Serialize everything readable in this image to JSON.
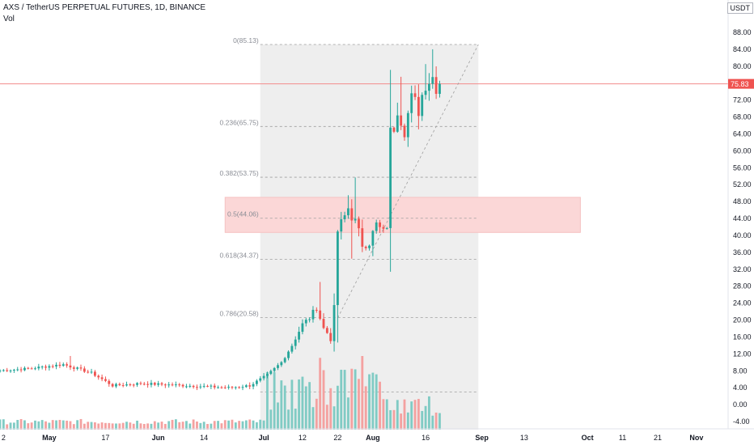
{
  "header": {
    "symbol_line": "AXS / TetherUS PERPETUAL FUTURES, 1D, BINANCE",
    "volume_label": "Vol",
    "currency": "USDT"
  },
  "price_tag": "75.83",
  "colors": {
    "up": "#26a69a",
    "down": "#ef5350",
    "vol_up": "#80cbc4",
    "vol_down": "#f4a1a0",
    "fib_bg": "#eeeeee",
    "zone": "#fbd7d7",
    "price_line": "#f28b8b"
  },
  "chart_data": {
    "type": "candlestick",
    "title": "AXS / TetherUS PERPETUAL FUTURES, 1D, BINANCE",
    "y_axis": {
      "min": -4,
      "max": 88,
      "ticks": [
        "88.00",
        "84.00",
        "80.00",
        "76.00",
        "72.00",
        "68.00",
        "64.00",
        "60.00",
        "56.00",
        "52.00",
        "48.00",
        "44.00",
        "40.00",
        "36.00",
        "32.00",
        "28.00",
        "24.00",
        "20.00",
        "16.00",
        "12.00",
        "8.00",
        "4.00",
        "0.00",
        "-4.00"
      ]
    },
    "x_axis": {
      "start": "2021-04-17",
      "end": "2021-11-10",
      "ticks": [
        {
          "label": "2",
          "date": "2021-04-18"
        },
        {
          "label": "May",
          "date": "2021-05-01"
        },
        {
          "label": "17",
          "date": "2021-05-17"
        },
        {
          "label": "Jun",
          "date": "2021-06-01"
        },
        {
          "label": "14",
          "date": "2021-06-14"
        },
        {
          "label": "Jul",
          "date": "2021-07-01"
        },
        {
          "label": "12",
          "date": "2021-07-12"
        },
        {
          "label": "22",
          "date": "2021-07-22"
        },
        {
          "label": "Aug",
          "date": "2021-08-01"
        },
        {
          "label": "16",
          "date": "2021-08-16"
        },
        {
          "label": "Sep",
          "date": "2021-09-01"
        },
        {
          "label": "13",
          "date": "2021-09-13"
        },
        {
          "label": "Oct",
          "date": "2021-10-01"
        },
        {
          "label": "11",
          "date": "2021-10-11"
        },
        {
          "label": "21",
          "date": "2021-10-21"
        },
        {
          "label": "Nov",
          "date": "2021-11-01"
        }
      ]
    },
    "candles_keypoints": [
      {
        "date": "2021-04-17",
        "close": 8.0
      },
      {
        "date": "2021-04-26",
        "close": 8.5
      },
      {
        "date": "2021-05-06",
        "close": 9.5
      },
      {
        "date": "2021-05-14",
        "close": 7.5
      },
      {
        "date": "2021-05-20",
        "close": 4.5
      },
      {
        "date": "2021-05-28",
        "close": 5.0
      },
      {
        "date": "2021-06-10",
        "close": 4.5
      },
      {
        "date": "2021-06-22",
        "close": 4.0
      },
      {
        "date": "2021-06-28",
        "close": 4.5
      },
      {
        "date": "2021-07-03",
        "close": 7.0
      },
      {
        "date": "2021-07-07",
        "close": 10.0
      },
      {
        "date": "2021-07-10",
        "close": 14.0
      },
      {
        "date": "2021-07-13",
        "close": 19.0
      },
      {
        "date": "2021-07-15",
        "close": 20.5
      },
      {
        "date": "2021-07-17",
        "close": 23.0
      },
      {
        "date": "2021-07-19",
        "close": 18.0
      },
      {
        "date": "2021-07-20",
        "close": 17.0
      },
      {
        "date": "2021-07-21",
        "close": 15.5
      },
      {
        "date": "2021-07-22",
        "close": 23.0
      },
      {
        "date": "2021-07-23",
        "close": 41.0
      },
      {
        "date": "2021-07-25",
        "close": 44.5
      },
      {
        "date": "2021-07-26",
        "close": 46.5
      },
      {
        "date": "2021-07-28",
        "close": 43.0
      },
      {
        "date": "2021-07-30",
        "close": 38.0
      },
      {
        "date": "2021-08-01",
        "close": 38.5
      },
      {
        "date": "2021-08-03",
        "close": 42.5
      },
      {
        "date": "2021-08-05",
        "close": 40.5
      },
      {
        "date": "2021-08-06",
        "close": 42.5
      },
      {
        "date": "2021-08-07",
        "close": 64.5
      },
      {
        "date": "2021-08-08",
        "close": 66.0
      },
      {
        "date": "2021-08-09",
        "close": 70.5
      },
      {
        "date": "2021-08-11",
        "close": 65.5
      },
      {
        "date": "2021-08-13",
        "close": 72.0
      },
      {
        "date": "2021-08-15",
        "close": 70.0
      },
      {
        "date": "2021-08-17",
        "close": 76.5
      },
      {
        "date": "2021-08-19",
        "close": 77.5
      },
      {
        "date": "2021-08-20",
        "close": 75.83
      }
    ],
    "fibonacci": {
      "start_date": "2021-06-30",
      "end_date": "2021-08-31",
      "levels": [
        {
          "label": "0(85.13)",
          "value": 85.13
        },
        {
          "label": "0.236(65.75)",
          "value": 65.75
        },
        {
          "label": "0.382(53.75)",
          "value": 53.75
        },
        {
          "label": "0.5(44.06)",
          "value": 44.06
        },
        {
          "label": "0.618(34.37)",
          "value": 34.37
        },
        {
          "label": "0.786(20.58)",
          "value": 20.58
        },
        {
          "label": "",
          "value": 3.0
        }
      ]
    },
    "zone": {
      "start_date": "2021-06-20",
      "end_date": "2021-09-29",
      "low": 40.7,
      "high": 49.0
    },
    "current_price": 75.83
  }
}
